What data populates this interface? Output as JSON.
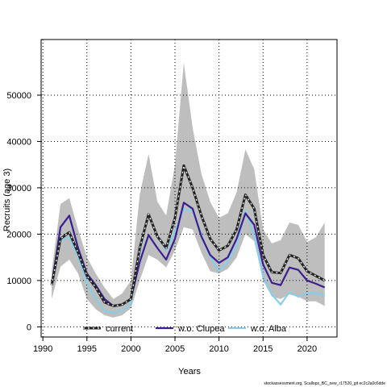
{
  "chart_data": {
    "type": "line",
    "xlabel": "Years",
    "ylabel": "Recruits (age 3)",
    "xlim": [
      1989.8,
      2023.4
    ],
    "ylim": [
      -2200,
      62000
    ],
    "x_ticks": [
      1990,
      1995,
      2000,
      2005,
      2010,
      2015,
      2020
    ],
    "x_tick_labels": [
      "1990",
      "1995",
      "2000",
      "2005",
      "2010",
      "2015",
      "2020"
    ],
    "y_ticks": [
      0,
      10000,
      20000,
      30000,
      40000,
      50000
    ],
    "y_tick_labels": [
      "0",
      "10000",
      "20000",
      "30000",
      "40000",
      "50000"
    ],
    "grid": true,
    "legend_position": "bottom-inside",
    "x": [
      1991,
      1992,
      1993,
      1994,
      1995,
      1996,
      1997,
      1998,
      1999,
      2000,
      2001,
      2002,
      2003,
      2004,
      2005,
      2006,
      2007,
      2008,
      2009,
      2010,
      2011,
      2012,
      2013,
      2014,
      2015,
      2016,
      2017,
      2018,
      2019,
      2020,
      2021,
      2022
    ],
    "band": {
      "color": "#bebebe",
      "upper": [
        12000,
        26500,
        27800,
        21000,
        15000,
        11500,
        8500,
        6000,
        7200,
        10000,
        28500,
        37300,
        27000,
        24000,
        35000,
        57000,
        43000,
        33000,
        27000,
        23500,
        24500,
        29000,
        38300,
        34000,
        21000,
        18000,
        18700,
        22500,
        22000,
        18300,
        19300,
        22500
      ],
      "lower": [
        6000,
        13000,
        14500,
        11500,
        6000,
        3800,
        2500,
        2000,
        2500,
        4000,
        10000,
        15500,
        14500,
        12800,
        16500,
        21500,
        21000,
        16000,
        12000,
        11500,
        12500,
        15000,
        20000,
        18500,
        10000,
        6500,
        6000,
        7000,
        6500,
        5500,
        5500,
        4500
      ]
    },
    "series": [
      {
        "name": "current",
        "color": "#222222",
        "style": "dashed-on-solid",
        "values": [
          9000,
          19000,
          20400,
          16000,
          11000,
          8500,
          5300,
          4500,
          4800,
          6000,
          17000,
          24300,
          19500,
          17000,
          23500,
          34800,
          30000,
          24000,
          19000,
          16500,
          17500,
          21000,
          28500,
          25500,
          15500,
          11800,
          11600,
          15500,
          14800,
          12000,
          11000,
          10000
        ]
      },
      {
        "name": "w.o. Clupea",
        "color": "#3b1f8e",
        "style": "solid",
        "values": [
          9000,
          21500,
          24000,
          17000,
          11500,
          9000,
          6000,
          4500,
          4800,
          6000,
          14000,
          19800,
          17000,
          14500,
          19000,
          26800,
          25500,
          19500,
          15500,
          13800,
          15000,
          19000,
          24500,
          22000,
          13500,
          9500,
          9000,
          12800,
          12300,
          10000,
          9300,
          8500
        ]
      },
      {
        "name": "w.o. Alba",
        "color": "#87ceeb",
        "style": "solid",
        "values": [
          9000,
          18500,
          19500,
          15000,
          9500,
          6000,
          3500,
          3000,
          3500,
          5000,
          16000,
          24500,
          19500,
          16500,
          20500,
          25500,
          25000,
          20000,
          15000,
          12000,
          14000,
          17500,
          25000,
          19500,
          11000,
          7000,
          4800,
          7500,
          6500,
          7300,
          7300,
          6700
        ]
      }
    ]
  },
  "footer": {
    "source": "stockassessment.org, Scallops_BC_new_r17520_git ec2c2a0c6dde"
  }
}
